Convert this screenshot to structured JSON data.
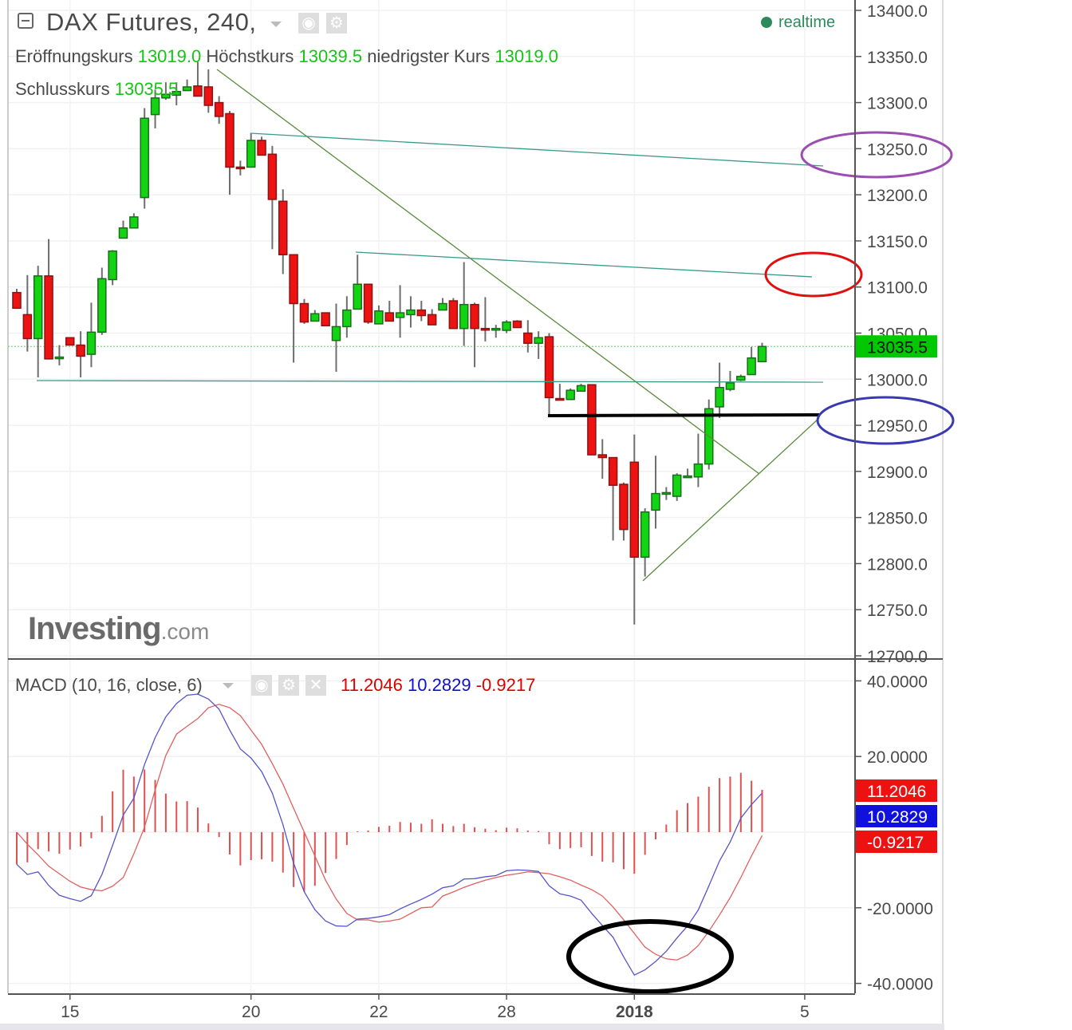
{
  "header": {
    "title": "DAX Futures, 240,",
    "status": "realtime",
    "ohlc": [
      {
        "label": "Eröffnungskurs",
        "value": "13019.0"
      },
      {
        "label": "Höchstkurs",
        "value": "13039.5"
      },
      {
        "label": "niedrigster Kurs",
        "value": "13019.0"
      },
      {
        "label": "Schlusskurs",
        "value": "13035.5"
      }
    ]
  },
  "watermark": {
    "main": "Investing",
    "suffix": ".com"
  },
  "colors": {
    "up": "#13d413",
    "up_border": "#1d6b1d",
    "down": "#ee1313",
    "down_border": "#8a1313",
    "macd_line": "#5555cc",
    "signal_line": "#e06060",
    "histogram": "#e05050",
    "last_price": "#00c800",
    "trend_green": "#5a8a3a",
    "trend_teal": "#3a9a8a",
    "circle_purple": "#9b4db0",
    "circle_red": "#e01010",
    "circle_blue": "#3a3ab0",
    "circle_black": "#000000"
  },
  "chart_data": [
    {
      "type": "candlestick",
      "title": "DAX Futures, 240,",
      "ylim": [
        12700,
        13400
      ],
      "y_ticks": [
        "13400.0",
        "13350.0",
        "13300.0",
        "13250.0",
        "13200.0",
        "13150.0",
        "13100.0",
        "13050.0",
        "13000.0",
        "12950.0",
        "12900.0",
        "12850.0",
        "12800.0",
        "12750.0",
        "12700.0"
      ],
      "last_price": 13035.5,
      "last_price_label": "13035.5",
      "x_ticks": [
        {
          "label": "15",
          "bar": 6
        },
        {
          "label": "20",
          "bar": 23
        },
        {
          "label": "22",
          "bar": 35
        },
        {
          "label": "28",
          "bar": 47
        },
        {
          "label": "2018",
          "bar": 59,
          "bold": true
        },
        {
          "label": "5",
          "bar": 75
        }
      ],
      "grid": true,
      "candles_ohlc": [
        [
          13094,
          13098,
          13077,
          13077
        ],
        [
          13070,
          13113,
          13030,
          13044
        ],
        [
          13044,
          13123,
          13002,
          13112
        ],
        [
          13112,
          13152,
          13022,
          13022
        ],
        [
          13024,
          13037,
          13015,
          13024
        ],
        [
          13045,
          13045,
          13037,
          13037
        ],
        [
          13037,
          13052,
          13002,
          13025
        ],
        [
          13027,
          13083,
          13013,
          13051
        ],
        [
          13051,
          13121,
          13048,
          13109
        ],
        [
          13108,
          13140,
          13102,
          13139
        ],
        [
          13153,
          13172,
          13153,
          13164
        ],
        [
          13164,
          13180,
          13164,
          13176
        ],
        [
          13197,
          13294,
          13185,
          13283
        ],
        [
          13287,
          13314,
          13272,
          13305
        ],
        [
          13305,
          13322,
          13303,
          13309
        ],
        [
          13308,
          13322,
          13297,
          13312
        ],
        [
          13313,
          13325,
          13313,
          13317
        ],
        [
          13318,
          13344,
          13307,
          13307
        ],
        [
          13317,
          13336,
          13289,
          13297
        ],
        [
          13300,
          13307,
          13277,
          13285
        ],
        [
          13288,
          13291,
          13200,
          13230
        ],
        [
          13230,
          13237,
          13221,
          13229
        ],
        [
          13230,
          13267,
          13230,
          13259
        ],
        [
          13259,
          13263,
          13243,
          13243
        ],
        [
          13244,
          13253,
          13141,
          13195
        ],
        [
          13193,
          13206,
          13114,
          13135
        ],
        [
          13135,
          13135,
          13018,
          13082
        ],
        [
          13082,
          13087,
          13060,
          13062
        ],
        [
          13063,
          13075,
          13063,
          13071
        ],
        [
          13072,
          13072,
          13058,
          13058
        ],
        [
          13042,
          13082,
          13008,
          13057
        ],
        [
          13057,
          13090,
          13045,
          13075
        ],
        [
          13076,
          13135,
          13076,
          13103
        ],
        [
          13103,
          13103,
          13060,
          13062
        ],
        [
          13060,
          13080,
          13060,
          13074
        ],
        [
          13072,
          13085,
          13063,
          13063
        ],
        [
          13067,
          13102,
          13045,
          13072
        ],
        [
          13070,
          13090,
          13056,
          13075
        ],
        [
          13075,
          13085,
          13063,
          13069
        ],
        [
          13070,
          13076,
          13059,
          13059
        ],
        [
          13075,
          13088,
          13075,
          13082
        ],
        [
          13085,
          13088,
          13055,
          13055
        ],
        [
          13055,
          13127,
          13036,
          13081
        ],
        [
          13081,
          13083,
          13013,
          13055
        ],
        [
          13055,
          13089,
          13041,
          13054
        ],
        [
          13054,
          13059,
          13045,
          13055
        ],
        [
          13053,
          13064,
          13050,
          13062
        ],
        [
          13063,
          13064,
          13056,
          13056
        ],
        [
          13050,
          13064,
          13029,
          13039
        ],
        [
          13039,
          13052,
          13022,
          13045
        ],
        [
          13046,
          13050,
          12959,
          12980
        ],
        [
          12979,
          12995,
          12977,
          12978
        ],
        [
          12978,
          12990,
          12978,
          12988
        ],
        [
          12987,
          12995,
          12987,
          12993
        ],
        [
          12994,
          12994,
          12918,
          12918
        ],
        [
          12918,
          12935,
          12892,
          12915
        ],
        [
          12915,
          12915,
          12825,
          12885
        ],
        [
          12886,
          12888,
          12825,
          12837
        ],
        [
          12910,
          12940,
          12734,
          12807
        ],
        [
          12807,
          12860,
          12786,
          12856
        ],
        [
          12858,
          12917,
          12838,
          12876
        ],
        [
          12876,
          12883,
          12869,
          12877
        ],
        [
          12873,
          12898,
          12868,
          12896
        ],
        [
          12895,
          12903,
          12895,
          12895
        ],
        [
          12894,
          12941,
          12883,
          12908
        ],
        [
          12908,
          12978,
          12902,
          12968
        ],
        [
          12970,
          13018,
          12958,
          12991
        ],
        [
          12989,
          13009,
          12987,
          12996
        ],
        [
          12999,
          13005,
          12998,
          13003
        ],
        [
          13005,
          13035,
          13005,
          13023
        ],
        [
          13019.0,
          13039.5,
          13019.0,
          13035.5
        ]
      ]
    },
    {
      "type": "line",
      "title": "MACD (10, 16, close, 6)",
      "ylim": [
        -40,
        40
      ],
      "y_ticks": [
        "40.0000",
        "20.0000",
        "-20.0000",
        "-40.0000"
      ],
      "current_values": {
        "histogram": "11.2046",
        "macd": "10.2829",
        "signal": "-0.9217"
      },
      "series": [
        {
          "key": "macd",
          "values": [
            -8.5,
            -11.2,
            -10.5,
            -14.1,
            -16.7,
            -17.6,
            -18.3,
            -16.8,
            -11.2,
            -3.5,
            4.5,
            9,
            17.9,
            25,
            30.5,
            34,
            36.2,
            36.5,
            35.2,
            32.5,
            27,
            22,
            19.6,
            16,
            10.3,
            2,
            -8.2,
            -15.8,
            -20.5,
            -23.5,
            -24.8,
            -24.9,
            -23,
            -22.8,
            -22.4,
            -21.8,
            -20.3,
            -19,
            -17.8,
            -16.4,
            -14.7,
            -14.2,
            -12.4,
            -12.3,
            -11.8,
            -11.5,
            -10.2,
            -10,
            -10.1,
            -10.4,
            -14.2,
            -16.3,
            -16.9,
            -18,
            -21.5,
            -24.7,
            -27.8,
            -33,
            -37.8,
            -36.4,
            -34.2,
            -31.5,
            -28,
            -24.8,
            -20.6,
            -14.2,
            -7.6,
            -2.6,
            3.7,
            7.3,
            10.3
          ]
        },
        {
          "key": "signal",
          "values": [
            0,
            -3.2,
            -6,
            -9,
            -11,
            -13,
            -14.5,
            -15.2,
            -15.5,
            -14.3,
            -12,
            -5.7,
            1.3,
            11.2,
            20.3,
            25.9,
            28,
            30,
            32.9,
            33.8,
            32.9,
            30.8,
            27,
            23.2,
            18.1,
            12.7,
            6.3,
            0,
            -6.3,
            -12.7,
            -17.7,
            -21.5,
            -23.2,
            -23.2,
            -23.8,
            -23.5,
            -23,
            -21.5,
            -20,
            -19.8,
            -16.9,
            -15.8,
            -14.6,
            -13.6,
            -12.7,
            -12,
            -11.4,
            -11,
            -10.5,
            -10.7,
            -11,
            -11.8,
            -12.7,
            -14,
            -15.2,
            -16.9,
            -19.8,
            -23.2,
            -26.8,
            -30.4,
            -32.3,
            -33.5,
            -33.8,
            -32.5,
            -30,
            -26.2,
            -21.9,
            -17.3,
            -12,
            -6.3,
            -0.9
          ]
        }
      ],
      "grid": true
    }
  ]
}
